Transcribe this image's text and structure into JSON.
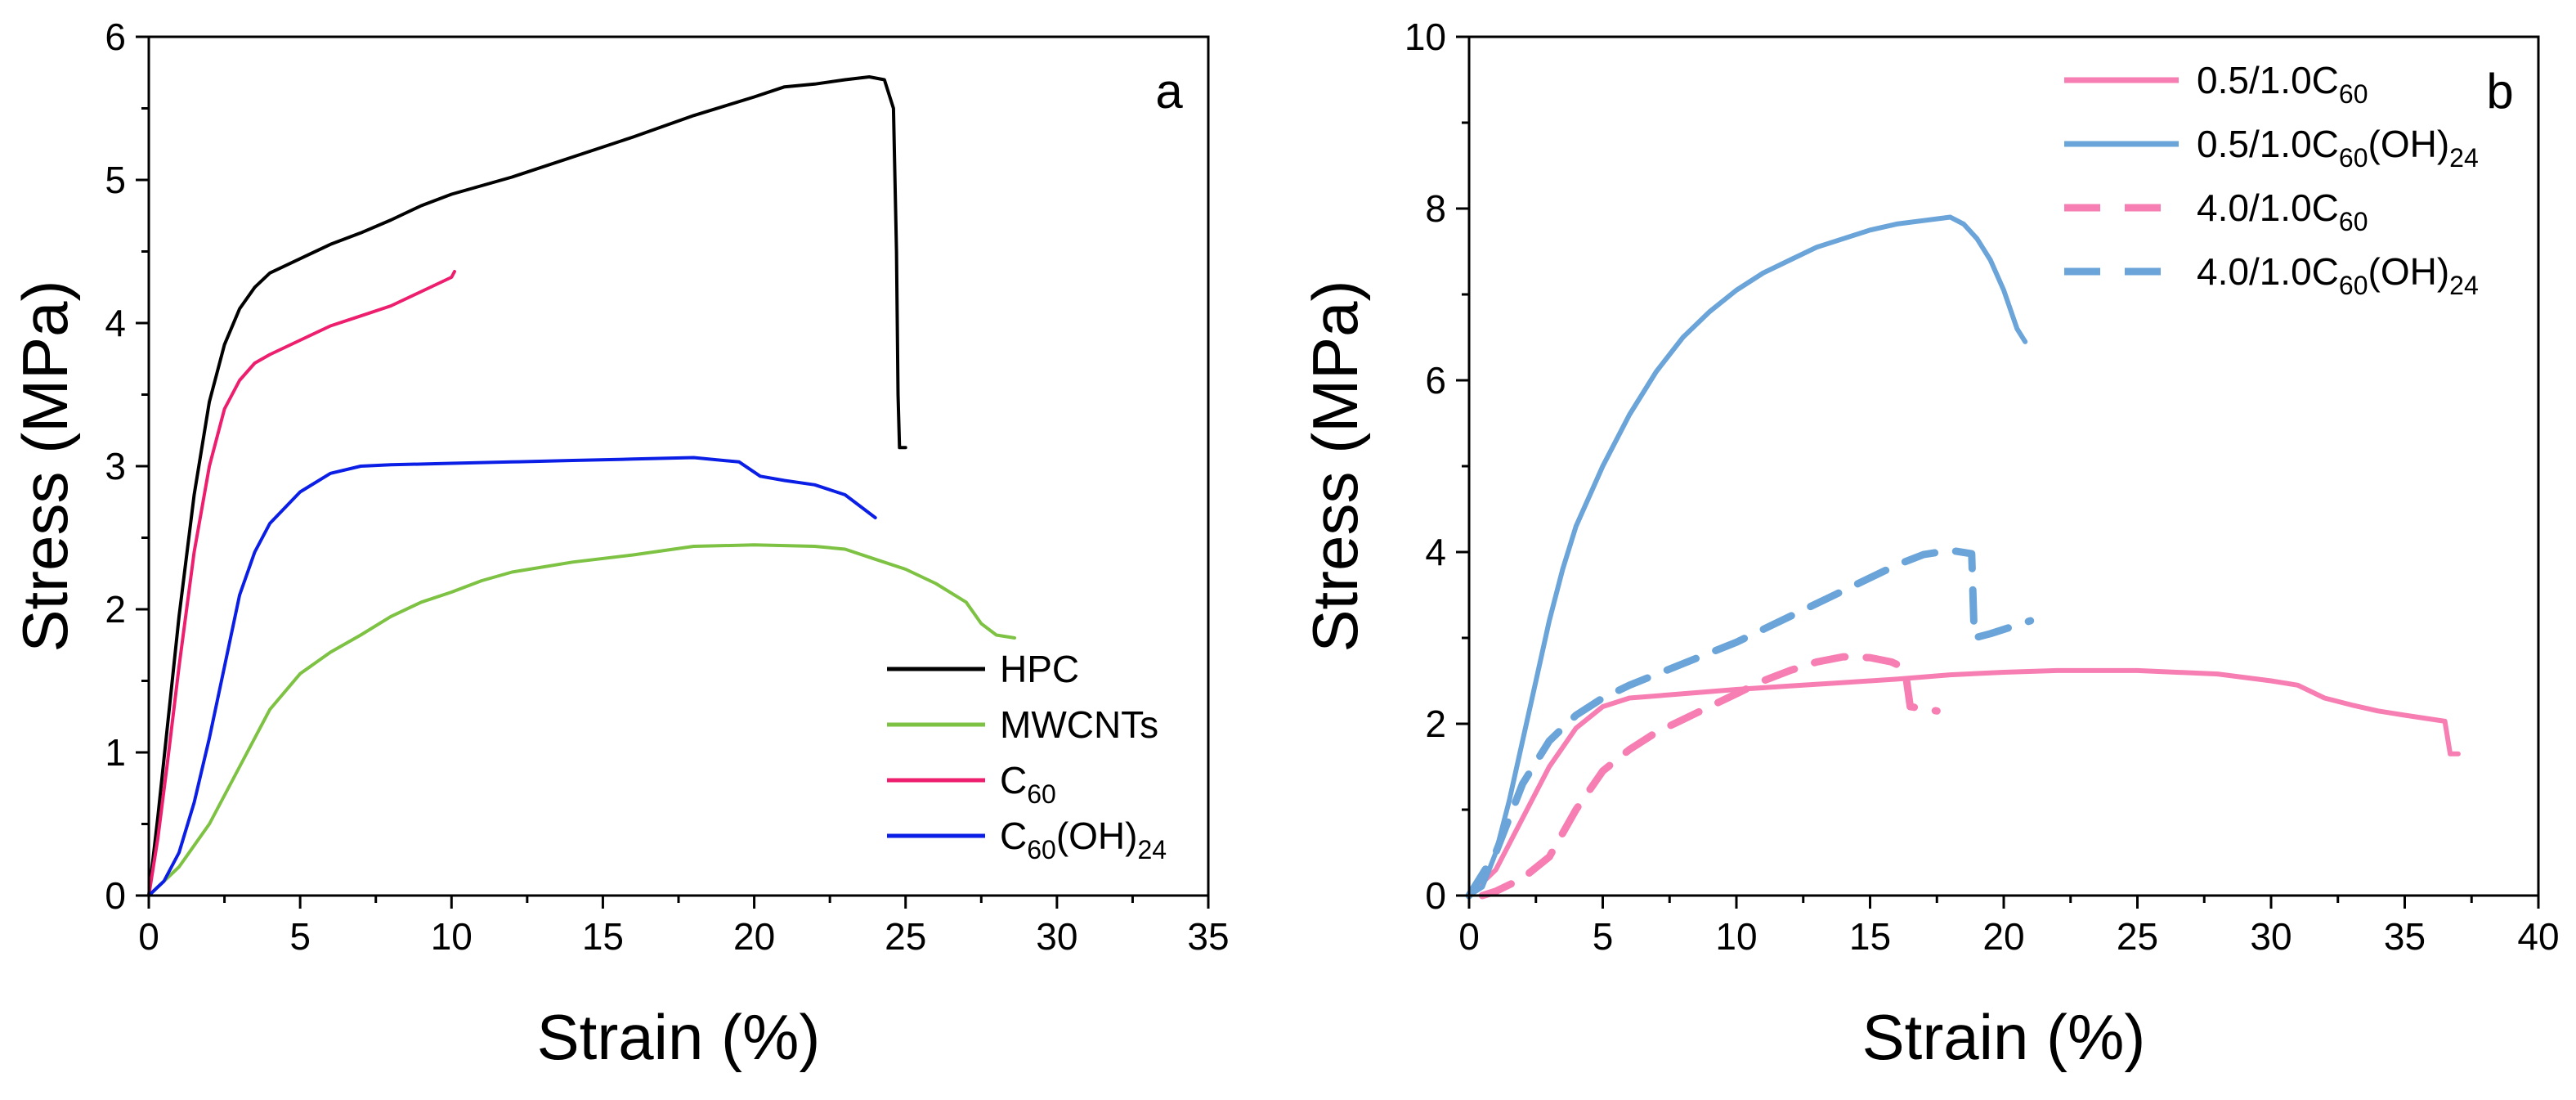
{
  "chart_data": [
    {
      "type": "line",
      "panel_label": "a",
      "title": "",
      "xlabel": "Strain (%)",
      "ylabel": "Stress (MPa)",
      "xlim": [
        0,
        35
      ],
      "ylim": [
        0,
        6
      ],
      "xticks": [
        "0",
        "5",
        "10",
        "15",
        "20",
        "25",
        "30",
        "35"
      ],
      "yticks": [
        "0",
        "1",
        "2",
        "3",
        "4",
        "5",
        "6"
      ],
      "legend_position": "bottom-right",
      "grid": false,
      "series": [
        {
          "name": "HPC",
          "legend_main": "HPC",
          "legend_sub": "",
          "legend_tail": "",
          "color": "#000000",
          "dashed": false,
          "points": [
            [
              0,
              0
            ],
            [
              0.3,
              0.55
            ],
            [
              0.6,
              1.15
            ],
            [
              1,
              1.95
            ],
            [
              1.5,
              2.8
            ],
            [
              2,
              3.45
            ],
            [
              2.5,
              3.85
            ],
            [
              3,
              4.1
            ],
            [
              3.5,
              4.25
            ],
            [
              4,
              4.35
            ],
            [
              5,
              4.45
            ],
            [
              6,
              4.55
            ],
            [
              7,
              4.63
            ],
            [
              8,
              4.72
            ],
            [
              9,
              4.82
            ],
            [
              10,
              4.9
            ],
            [
              12,
              5.02
            ],
            [
              14,
              5.16
            ],
            [
              16,
              5.3
            ],
            [
              18,
              5.45
            ],
            [
              20,
              5.58
            ],
            [
              21,
              5.65
            ],
            [
              22,
              5.67
            ],
            [
              23,
              5.7
            ],
            [
              23.8,
              5.72
            ],
            [
              24.3,
              5.7
            ],
            [
              24.6,
              5.5
            ],
            [
              24.7,
              4.5
            ],
            [
              24.75,
              3.5
            ],
            [
              24.8,
              3.13
            ],
            [
              25.0,
              3.13
            ]
          ]
        },
        {
          "name": "MWCNTs",
          "legend_main": "MWCNTs",
          "legend_sub": "",
          "legend_tail": "",
          "color": "#7dc242",
          "dashed": false,
          "points": [
            [
              0,
              0
            ],
            [
              0.5,
              0.1
            ],
            [
              1,
              0.2
            ],
            [
              1.5,
              0.35
            ],
            [
              2,
              0.5
            ],
            [
              2.5,
              0.7
            ],
            [
              3,
              0.9
            ],
            [
              3.5,
              1.1
            ],
            [
              4,
              1.3
            ],
            [
              5,
              1.55
            ],
            [
              6,
              1.7
            ],
            [
              7,
              1.82
            ],
            [
              8,
              1.95
            ],
            [
              9,
              2.05
            ],
            [
              10,
              2.12
            ],
            [
              11,
              2.2
            ],
            [
              12,
              2.26
            ],
            [
              14,
              2.33
            ],
            [
              16,
              2.38
            ],
            [
              18,
              2.44
            ],
            [
              20,
              2.45
            ],
            [
              22,
              2.44
            ],
            [
              23,
              2.42
            ],
            [
              24,
              2.35
            ],
            [
              25,
              2.28
            ],
            [
              26,
              2.18
            ],
            [
              27,
              2.05
            ],
            [
              27.5,
              1.9
            ],
            [
              28,
              1.82
            ],
            [
              28.6,
              1.8
            ]
          ]
        },
        {
          "name": "C60",
          "legend_main": "C",
          "legend_sub": "60",
          "legend_tail": "",
          "color": "#ee1e6e",
          "dashed": false,
          "points": [
            [
              0,
              0
            ],
            [
              0.3,
              0.4
            ],
            [
              0.6,
              0.9
            ],
            [
              1,
              1.6
            ],
            [
              1.5,
              2.4
            ],
            [
              2,
              3.0
            ],
            [
              2.5,
              3.4
            ],
            [
              3,
              3.6
            ],
            [
              3.5,
              3.72
            ],
            [
              4,
              3.78
            ],
            [
              5,
              3.88
            ],
            [
              6,
              3.98
            ],
            [
              7,
              4.05
            ],
            [
              8,
              4.12
            ],
            [
              9,
              4.22
            ],
            [
              10,
              4.32
            ],
            [
              10.1,
              4.36
            ]
          ]
        },
        {
          "name": "C60(OH)24",
          "legend_main": "C",
          "legend_sub": "60",
          "legend_tail": "(OH)",
          "legend_sub2": "24",
          "color": "#0a1ee6",
          "dashed": false,
          "points": [
            [
              0,
              0
            ],
            [
              0.5,
              0.1
            ],
            [
              1,
              0.3
            ],
            [
              1.5,
              0.65
            ],
            [
              2,
              1.1
            ],
            [
              2.5,
              1.6
            ],
            [
              3,
              2.1
            ],
            [
              3.5,
              2.4
            ],
            [
              4,
              2.6
            ],
            [
              5,
              2.82
            ],
            [
              6,
              2.95
            ],
            [
              7,
              3.0
            ],
            [
              8,
              3.01
            ],
            [
              10,
              3.02
            ],
            [
              12,
              3.03
            ],
            [
              14,
              3.04
            ],
            [
              16,
              3.05
            ],
            [
              18,
              3.06
            ],
            [
              19.5,
              3.03
            ],
            [
              20.2,
              2.93
            ],
            [
              21,
              2.9
            ],
            [
              22,
              2.87
            ],
            [
              23,
              2.8
            ],
            [
              23.5,
              2.72
            ],
            [
              24,
              2.64
            ]
          ]
        }
      ]
    },
    {
      "type": "line",
      "panel_label": "b",
      "title": "",
      "xlabel": "Strain (%)",
      "ylabel": "Stress (MPa)",
      "xlim": [
        0,
        40
      ],
      "ylim": [
        0,
        10
      ],
      "xticks": [
        "0",
        "5",
        "10",
        "15",
        "20",
        "25",
        "30",
        "35",
        "40"
      ],
      "yticks": [
        "0",
        "2",
        "4",
        "6",
        "8",
        "10"
      ],
      "legend_position": "top-right",
      "grid": false,
      "series": [
        {
          "name": "0.5/1.0C60",
          "legend_main": "0.5/1.0C",
          "legend_sub": "60",
          "legend_tail": "",
          "color": "#f77eb2",
          "dashed": false,
          "points": [
            [
              0,
              0
            ],
            [
              1,
              0.3
            ],
            [
              2,
              0.9
            ],
            [
              3,
              1.5
            ],
            [
              4,
              1.95
            ],
            [
              5,
              2.2
            ],
            [
              6,
              2.3
            ],
            [
              8,
              2.35
            ],
            [
              10,
              2.4
            ],
            [
              12,
              2.44
            ],
            [
              14,
              2.48
            ],
            [
              16,
              2.52
            ],
            [
              18,
              2.57
            ],
            [
              20,
              2.6
            ],
            [
              22,
              2.62
            ],
            [
              25,
              2.62
            ],
            [
              28,
              2.58
            ],
            [
              30,
              2.5
            ],
            [
              31,
              2.45
            ],
            [
              32,
              2.3
            ],
            [
              33,
              2.22
            ],
            [
              34,
              2.15
            ],
            [
              35,
              2.1
            ],
            [
              36.5,
              2.03
            ],
            [
              36.7,
              1.65
            ],
            [
              37,
              1.65
            ]
          ]
        },
        {
          "name": "0.5/1.0C60(OH)24",
          "legend_main": "0.5/1.0C",
          "legend_sub": "60",
          "legend_tail": "(OH)",
          "legend_sub2": "24",
          "color": "#6ba4d9",
          "dashed": false,
          "points": [
            [
              0,
              0
            ],
            [
              0.5,
              0.1
            ],
            [
              1,
              0.5
            ],
            [
              1.5,
              1.1
            ],
            [
              2,
              1.8
            ],
            [
              2.5,
              2.5
            ],
            [
              3,
              3.2
            ],
            [
              3.5,
              3.8
            ],
            [
              4,
              4.3
            ],
            [
              5,
              5.0
            ],
            [
              6,
              5.6
            ],
            [
              7,
              6.1
            ],
            [
              8,
              6.5
            ],
            [
              9,
              6.8
            ],
            [
              10,
              7.05
            ],
            [
              11,
              7.25
            ],
            [
              12,
              7.4
            ],
            [
              13,
              7.55
            ],
            [
              14,
              7.65
            ],
            [
              15,
              7.75
            ],
            [
              16,
              7.82
            ],
            [
              17,
              7.86
            ],
            [
              18,
              7.9
            ],
            [
              18.5,
              7.82
            ],
            [
              19,
              7.65
            ],
            [
              19.5,
              7.4
            ],
            [
              20,
              7.05
            ],
            [
              20.5,
              6.6
            ],
            [
              20.8,
              6.45
            ]
          ]
        },
        {
          "name": "4.0/1.0C60",
          "legend_main": "4.0/1.0C",
          "legend_sub": "60",
          "legend_tail": "",
          "color": "#f77eb2",
          "dashed": true,
          "points": [
            [
              0.5,
              0
            ],
            [
              1,
              0.05
            ],
            [
              2,
              0.2
            ],
            [
              3,
              0.45
            ],
            [
              4,
              1.0
            ],
            [
              5,
              1.45
            ],
            [
              6,
              1.7
            ],
            [
              7,
              1.9
            ],
            [
              8,
              2.05
            ],
            [
              9,
              2.2
            ],
            [
              10,
              2.35
            ],
            [
              11,
              2.5
            ],
            [
              12,
              2.62
            ],
            [
              13,
              2.72
            ],
            [
              14,
              2.78
            ],
            [
              15,
              2.77
            ],
            [
              15.8,
              2.72
            ],
            [
              16.3,
              2.65
            ],
            [
              16.5,
              2.2
            ],
            [
              17.5,
              2.15
            ]
          ]
        },
        {
          "name": "4.0/1.0C60(OH)24",
          "legend_main": "4.0/1.0C",
          "legend_sub": "60",
          "legend_tail": "(OH)",
          "legend_sub2": "24",
          "color": "#6ba4d9",
          "dashed": true,
          "points": [
            [
              0,
              0
            ],
            [
              1,
              0.5
            ],
            [
              2,
              1.3
            ],
            [
              3,
              1.8
            ],
            [
              4,
              2.1
            ],
            [
              5,
              2.3
            ],
            [
              6,
              2.45
            ],
            [
              8,
              2.7
            ],
            [
              10,
              2.95
            ],
            [
              12,
              3.25
            ],
            [
              14,
              3.55
            ],
            [
              16,
              3.85
            ],
            [
              17,
              3.97
            ],
            [
              18,
              4.02
            ],
            [
              18.8,
              3.98
            ],
            [
              18.9,
              3.0
            ],
            [
              19.5,
              3.05
            ],
            [
              20.5,
              3.15
            ],
            [
              21,
              3.2
            ]
          ]
        }
      ]
    }
  ]
}
